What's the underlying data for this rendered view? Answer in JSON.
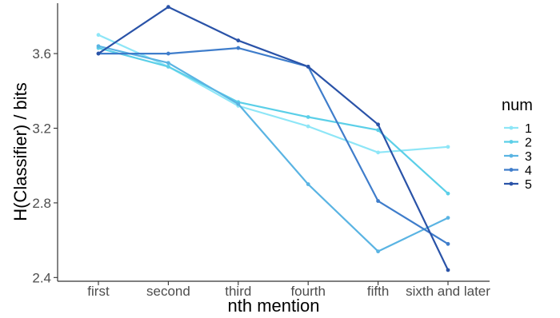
{
  "chart_data": {
    "type": "line",
    "xlabel": "nth mention",
    "ylabel": "H(Classifier) / bits",
    "categories": [
      "first",
      "second",
      "third",
      "fourth",
      "fifth",
      "sixth and later"
    ],
    "ylim": [
      2.38,
      3.87
    ],
    "yticks": [
      2.4,
      2.8,
      3.2,
      3.6
    ],
    "ytick_labels": [
      "2.4",
      "2.8",
      "3.2",
      "3.6"
    ],
    "grid": false,
    "legend": {
      "title": "num",
      "position": "right"
    },
    "series": [
      {
        "name": "1",
        "color": "#8ee6f7",
        "values": [
          3.7,
          3.53,
          3.32,
          3.21,
          3.07,
          3.1
        ]
      },
      {
        "name": "2",
        "color": "#5bcfe8",
        "values": [
          3.63,
          3.53,
          3.34,
          3.26,
          3.19,
          2.85
        ]
      },
      {
        "name": "3",
        "color": "#5ab4e3",
        "values": [
          3.64,
          3.55,
          3.33,
          2.9,
          2.54,
          2.72
        ]
      },
      {
        "name": "4",
        "color": "#3f7dcb",
        "values": [
          3.6,
          3.6,
          3.63,
          3.53,
          2.81,
          2.58
        ]
      },
      {
        "name": "5",
        "color": "#2a53a8",
        "values": [
          3.6,
          3.85,
          3.67,
          3.53,
          3.22,
          2.44
        ]
      }
    ]
  }
}
